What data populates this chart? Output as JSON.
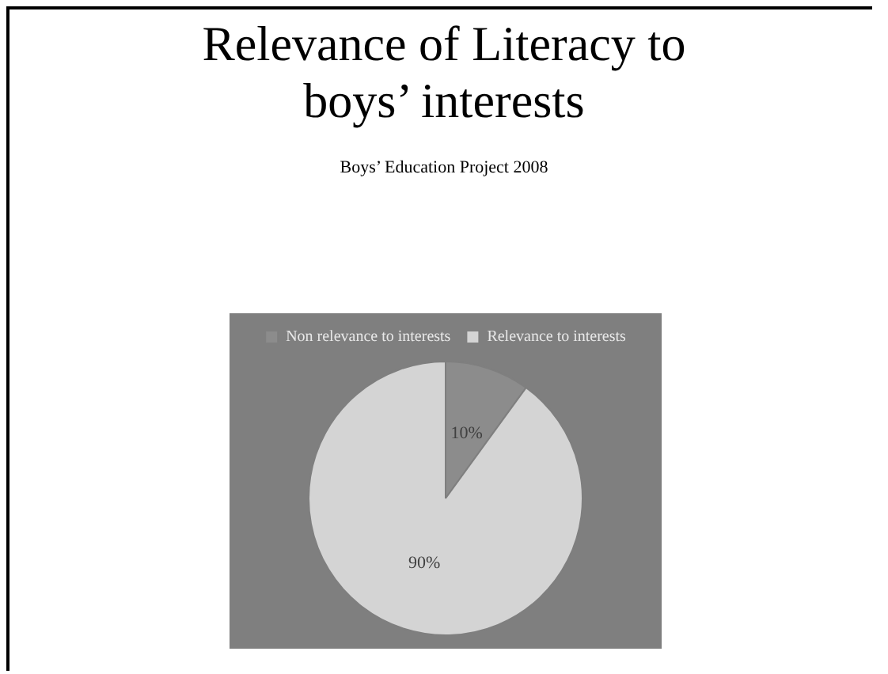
{
  "chart_data": {
    "type": "pie",
    "title": "Relevance of Literacy to boys’ interests",
    "subtitle": "Boys’ Education Project 2008",
    "categories": [
      "Non relevance to interests",
      "Relevance to interests"
    ],
    "values": [
      10,
      90
    ],
    "colors": [
      "#8c8c8c",
      "#d4d4d4"
    ],
    "value_labels": [
      "10%",
      "90%"
    ],
    "legend": "top"
  }
}
